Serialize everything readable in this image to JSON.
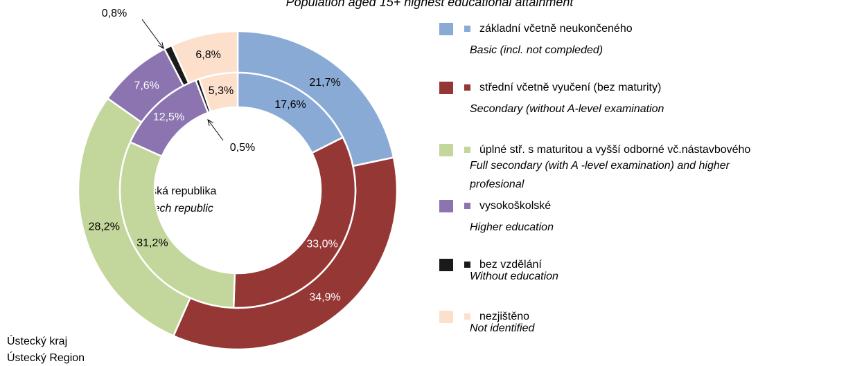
{
  "chart_data": {
    "type": "donut",
    "title": "Population aged 15+ highest educational attainment",
    "categories": [
      "základní včetně neukončeného",
      "střední včetně vyučení (bez maturity)",
      "úplné stř. s maturitou a vyšší odborné vč.nástavbového",
      "vysokoškolské",
      "bez vzdělání",
      "nezjištěno"
    ],
    "categories_en": [
      "Basic (incl.  not compleded)",
      "Secondary  (without A-level  examination",
      "Full secondary  (with   A -level  examination) and higher profesional",
      "Higher  education",
      "Without education",
      "Not identified"
    ],
    "colors": [
      "#8aaad6",
      "#953735",
      "#c3d69b",
      "#8b74b0",
      "#1a1a1a",
      "#fde0cc"
    ],
    "series": [
      {
        "name": "Ústecký kraj",
        "name_en": "Ústecký Region",
        "values": [
          21.7,
          34.9,
          28.2,
          7.6,
          0.8,
          6.8
        ],
        "value_labels": [
          "21,7%",
          "34,9%",
          "28,2%",
          "7,6%",
          "0,8%",
          "6,8%"
        ]
      },
      {
        "name": "Česká republika",
        "name_en": "Czech republic",
        "values": [
          17.6,
          33.0,
          31.2,
          12.5,
          0.5,
          5.3
        ],
        "value_labels": [
          "17,6%",
          "33,0%",
          "31,2%",
          "12,5%",
          "0,5%",
          "5,3%"
        ]
      }
    ]
  }
}
